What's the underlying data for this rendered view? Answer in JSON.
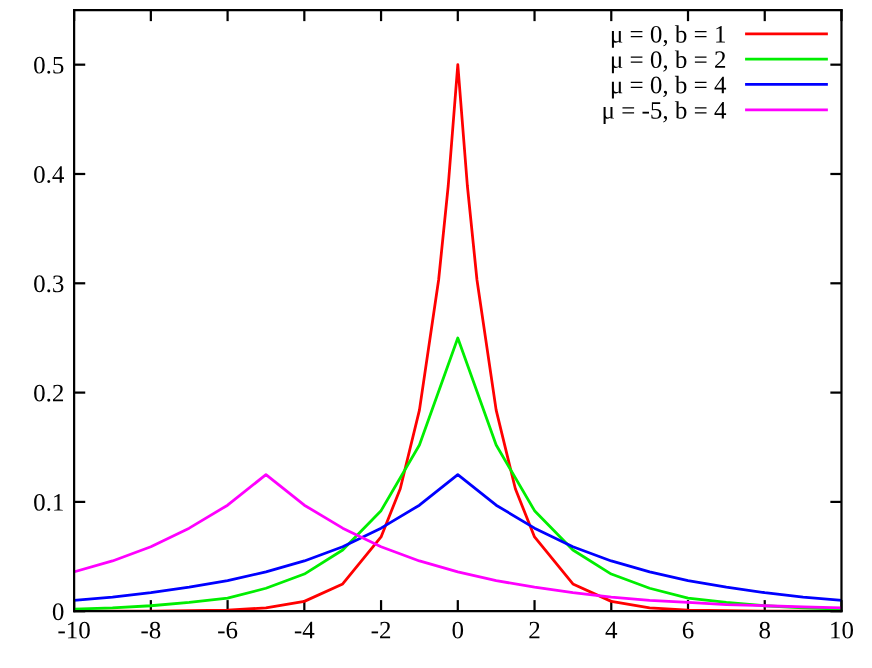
{
  "chart_data": {
    "type": "line",
    "xlim": [
      -10,
      10
    ],
    "xticks": [
      -10,
      -8,
      -6,
      -4,
      -2,
      0,
      2,
      4,
      6,
      8,
      10
    ],
    "ylim": [
      0,
      0.55
    ],
    "yticks": [
      0,
      0.1,
      0.2,
      0.3,
      0.4,
      0.5
    ],
    "grid": false,
    "legend": "top right",
    "marker": "none",
    "line_style": "solid",
    "series": [
      {
        "name": "μ = 0, b = 1",
        "color": "#ff0000",
        "x": [
          -10,
          -8,
          -6,
          -5,
          -4,
          -3,
          -2,
          -1.5,
          -1,
          -0.5,
          -0.25,
          0,
          0.25,
          0.5,
          1,
          1.5,
          2,
          3,
          4,
          5,
          6,
          8,
          10
        ],
        "values": [
          0.0,
          0.0,
          0.001,
          0.003,
          0.009,
          0.025,
          0.068,
          0.112,
          0.184,
          0.303,
          0.389,
          0.5,
          0.389,
          0.303,
          0.184,
          0.112,
          0.068,
          0.025,
          0.009,
          0.003,
          0.001,
          0.0,
          0.0
        ]
      },
      {
        "name": "μ = 0, b = 2",
        "color": "#00ee00",
        "x": [
          -10,
          -9,
          -8,
          -7,
          -6,
          -5,
          -4,
          -3,
          -2,
          -1,
          0,
          1,
          2,
          3,
          4,
          5,
          6,
          7,
          8,
          9,
          10
        ],
        "values": [
          0.002,
          0.003,
          0.005,
          0.008,
          0.012,
          0.021,
          0.034,
          0.056,
          0.092,
          0.152,
          0.25,
          0.152,
          0.092,
          0.056,
          0.034,
          0.021,
          0.012,
          0.008,
          0.005,
          0.003,
          0.002
        ]
      },
      {
        "name": "μ = 0, b = 4",
        "color": "#0000ff",
        "x": [
          -10,
          -9,
          -8,
          -7,
          -6,
          -5,
          -4,
          -3,
          -2,
          -1,
          0,
          1,
          2,
          3,
          4,
          5,
          6,
          7,
          8,
          9,
          10
        ],
        "values": [
          0.01,
          0.013,
          0.017,
          0.022,
          0.028,
          0.036,
          0.046,
          0.059,
          0.076,
          0.097,
          0.125,
          0.097,
          0.076,
          0.059,
          0.046,
          0.036,
          0.028,
          0.022,
          0.017,
          0.013,
          0.01
        ]
      },
      {
        "name": "μ = -5, b = 4",
        "color": "#ff00ff",
        "x": [
          -10,
          -9,
          -8,
          -7,
          -6,
          -5,
          -4,
          -3,
          -2,
          -1,
          0,
          1,
          2,
          3,
          4,
          5,
          6,
          7,
          8,
          9,
          10
        ],
        "values": [
          0.036,
          0.046,
          0.059,
          0.076,
          0.097,
          0.125,
          0.097,
          0.076,
          0.059,
          0.046,
          0.036,
          0.028,
          0.022,
          0.017,
          0.013,
          0.01,
          0.008,
          0.006,
          0.005,
          0.004,
          0.003
        ]
      }
    ]
  }
}
